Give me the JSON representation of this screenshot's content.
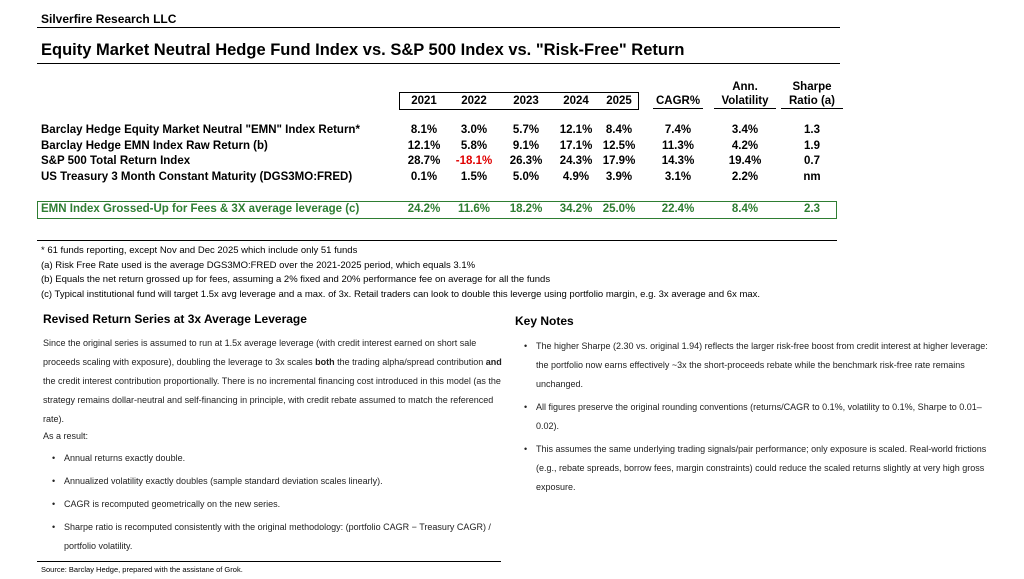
{
  "header": {
    "company": "Silverfire Research LLC",
    "title": "Equity Market Neutral Hedge Fund Index vs. S&P 500 Index vs. \"Risk-Free\" Return"
  },
  "table": {
    "columns": [
      "2021",
      "2022",
      "2023",
      "2024",
      "2025",
      "CAGR%",
      "Ann. Volatility",
      "Sharpe Ratio (a)"
    ],
    "rows": [
      {
        "label": "Barclay Hedge Equity Market Neutral \"EMN\" Index Return*",
        "values": [
          "8.1%",
          "3.0%",
          "5.7%",
          "12.1%",
          "8.4%",
          "7.4%",
          "3.4%",
          "1.3"
        ]
      },
      {
        "label": "Barclay Hedge EMN Index Raw Return (b)",
        "values": [
          "12.1%",
          "5.8%",
          "9.1%",
          "17.1%",
          "12.5%",
          "11.3%",
          "4.2%",
          "1.9"
        ]
      },
      {
        "label": "S&P 500 Total Return Index",
        "values": [
          "28.7%",
          "-18.1%",
          "26.3%",
          "24.3%",
          "17.9%",
          "14.3%",
          "19.4%",
          "0.7"
        ]
      },
      {
        "label": "US Treasury 3 Month Constant Maturity (DGS3MO:FRED)",
        "values": [
          "0.1%",
          "1.5%",
          "5.0%",
          "4.9%",
          "3.9%",
          "3.1%",
          "2.2%",
          "nm"
        ]
      }
    ],
    "highlight_row": {
      "label": "EMN Index Grossed-Up for Fees & 3X average leverage (c)",
      "values": [
        "24.2%",
        "11.6%",
        "18.2%",
        "34.2%",
        "25.0%",
        "22.4%",
        "8.4%",
        "2.3"
      ]
    }
  },
  "footnotes": [
    "* 61 funds reporting, except Nov and Dec 2025 which include only 51 funds",
    "(a) Risk Free Rate used is the average DGS3MO:FRED over the 2021-2025 period, which equals 3.1%",
    "(b) Equals the net return grossed up for fees, assuming a 2% fixed and 20% performance fee on average for all the funds",
    "(c) Typical institutional fund will target 1.5x avg leverage and a max. of 3x.  Retail traders can look to double this leverge using portfolio margin, e.g. 3x average and 6x max."
  ],
  "left": {
    "title": "Revised Return Series at 3x Average Leverage",
    "paragraph": [
      "Since the original series is assumed to run at 1.5x average leverage (with credit interest earned on short sale proceeds scaling with exposure), doubling the leverage to 3x scales ",
      "both",
      " the trading alpha/spread contribution ",
      "and",
      " the credit interest contribution proportionally. There is no incremental financing cost introduced in this model (as the strategy remains dollar-neutral and self-financing in principle, with credit rebate assumed to match the referenced rate)."
    ],
    "intro": "As a result:",
    "bullets": [
      "Annual returns exactly double.",
      "Annualized volatility exactly doubles (sample standard deviation scales linearly).",
      "CAGR is recomputed geometrically on the new series.",
      "Sharpe ratio is recomputed consistently with the original methodology: (portfolio CAGR − Treasury CAGR) / portfolio volatility."
    ]
  },
  "right": {
    "title": "Key Notes",
    "bullets": [
      "The higher Sharpe (2.30 vs. original 1.94) reflects the larger risk-free boost from credit interest at higher leverage: the portfolio now earns effectively ~3x the short-proceeds rebate while the benchmark risk-free rate remains unchanged.",
      "All figures preserve the original rounding conventions (returns/CAGR to 0.1%, volatility to 0.1%, Sharpe to 0.01–0.02).",
      "This assumes the same underlying trading signals/pair performance; only exposure is scaled. Real-world frictions (e.g., rebate spreads, borrow fees, margin constraints) could reduce the scaled returns slightly at very high gross exposure."
    ]
  },
  "source": "Source: Barclay Hedge, prepared with the assistane of Grok."
}
